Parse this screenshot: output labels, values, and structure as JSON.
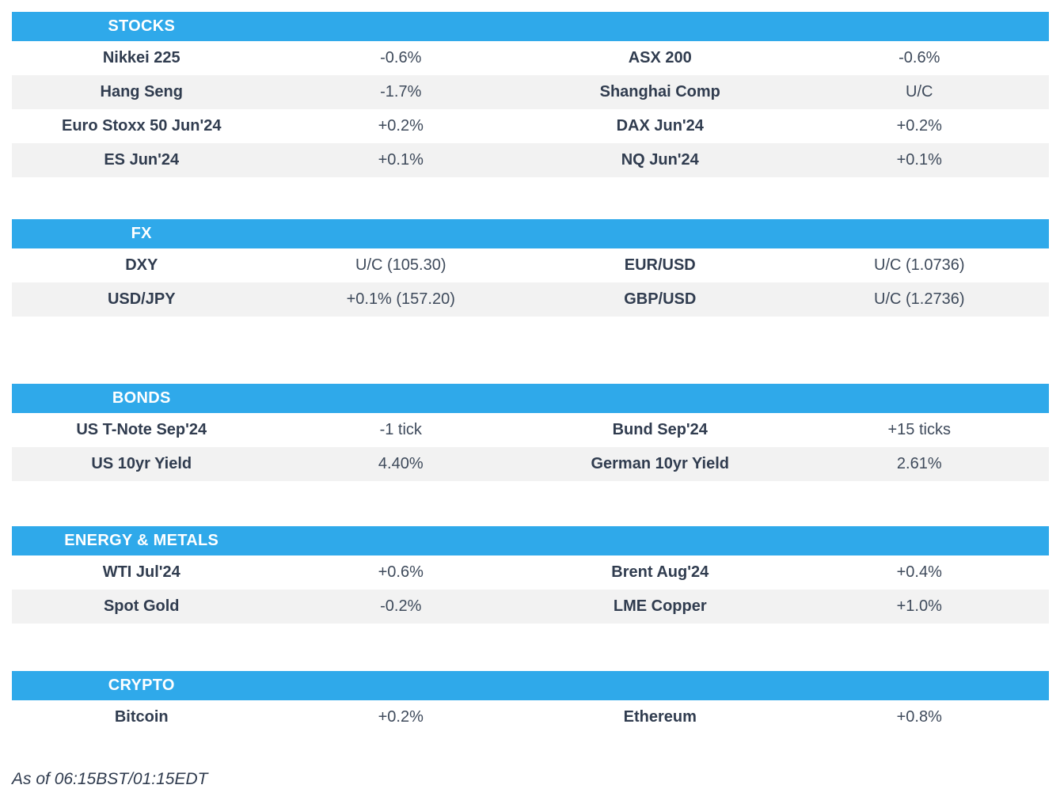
{
  "colors": {
    "header_bg": "#2FA9EA",
    "stripe": "#F2F2F2",
    "label_text": "#303C4F",
    "value_text": "#3E4A5B",
    "header_text": "#FFFFFF"
  },
  "page": {
    "footer": "As of 06:15BST/01:15EDT"
  },
  "sections": [
    {
      "title": "STOCKS",
      "rows": [
        {
          "l1": "Nikkei 225",
          "v1": "-0.6%",
          "l2": "ASX 200",
          "v2": "-0.6%"
        },
        {
          "l1": "Hang Seng",
          "v1": "-1.7%",
          "l2": "Shanghai Comp",
          "v2": "U/C"
        },
        {
          "l1": "Euro Stoxx 50 Jun'24",
          "v1": "+0.2%",
          "l2": "DAX Jun'24",
          "v2": "+0.2%"
        },
        {
          "l1": "ES Jun'24",
          "v1": "+0.1%",
          "l2": "NQ Jun'24",
          "v2": "+0.1%"
        }
      ]
    },
    {
      "title": "FX",
      "rows": [
        {
          "l1": "DXY",
          "v1": "U/C (105.30)",
          "l2": "EUR/USD",
          "v2": "U/C (1.0736)"
        },
        {
          "l1": "USD/JPY",
          "v1": "+0.1% (157.20)",
          "l2": "GBP/USD",
          "v2": "U/C (1.2736)"
        }
      ]
    },
    {
      "title": "BONDS",
      "rows": [
        {
          "l1": "US T-Note Sep'24",
          "v1": "-1 tick",
          "l2": "Bund Sep'24",
          "v2": "+15 ticks"
        },
        {
          "l1": "US 10yr Yield",
          "v1": "4.40%",
          "l2": "German 10yr Yield",
          "v2": "2.61%"
        }
      ]
    },
    {
      "title": "ENERGY & METALS",
      "rows": [
        {
          "l1": "WTI Jul'24",
          "v1": "+0.6%",
          "l2": "Brent Aug'24",
          "v2": "+0.4%"
        },
        {
          "l1": "Spot Gold",
          "v1": "-0.2%",
          "l2": "LME Copper",
          "v2": "+1.0%"
        }
      ]
    },
    {
      "title": "CRYPTO",
      "rows": [
        {
          "l1": "Bitcoin",
          "v1": "+0.2%",
          "l2": "Ethereum",
          "v2": "+0.8%"
        }
      ]
    }
  ]
}
